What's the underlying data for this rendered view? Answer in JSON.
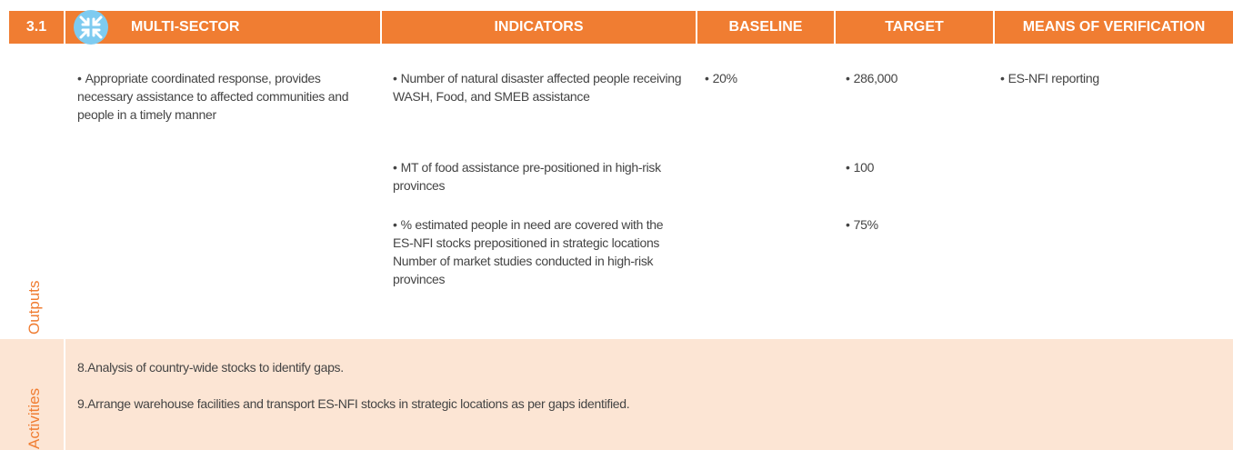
{
  "header": {
    "number": "3.1",
    "sector": "MULTI-SECTOR",
    "columns": [
      "INDICATORS",
      "BASELINE",
      "TARGET",
      "MEANS OF VERIFICATION"
    ]
  },
  "outputs": {
    "label": "Outputs",
    "result": "Appropriate coordinated response, provides necessary assistance to affected communities and people in a timely manner",
    "indicators": [
      "Number of natural disaster affected people receiving WASH, Food, and SMEB assistance",
      "MT of food assistance pre-positioned in high-risk provinces",
      "% estimated people in need are covered with the ES-NFI stocks prepositioned in strategic locations Number of market studies conducted in high-risk provinces"
    ],
    "baseline": [
      "20%"
    ],
    "targets": [
      "286,000",
      "100",
      "75%"
    ],
    "verification": [
      "ES-NFI reporting"
    ]
  },
  "activities": {
    "label": "Activities",
    "items": [
      "8.Analysis of country-wide stocks to identify gaps.",
      "9.Arrange warehouse facilities and transport ES-NFI stocks in strategic locations as per gaps identified."
    ]
  }
}
